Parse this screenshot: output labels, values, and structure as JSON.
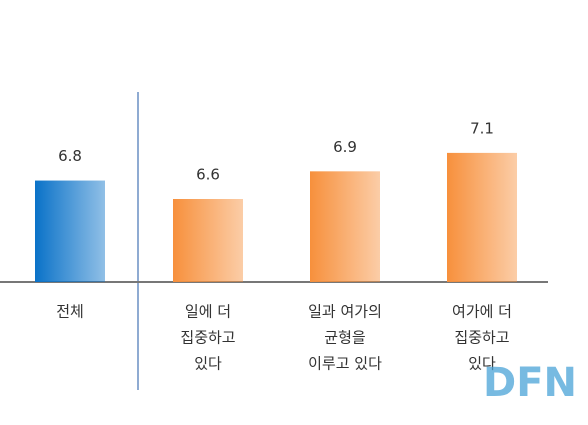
{
  "chart_data": {
    "type": "bar",
    "categories": [
      [
        "전체"
      ],
      [
        "일에 더",
        "집중하고",
        "있다"
      ],
      [
        "일과 여가의",
        "균형을",
        "이루고 있다"
      ],
      [
        "여가에 더",
        "집중하고",
        "있다"
      ]
    ],
    "values": [
      6.8,
      6.6,
      6.9,
      7.1
    ],
    "colors": [
      "#0a72c8",
      "#f7903c",
      "#f7903c",
      "#f7903c"
    ],
    "ylim": [
      5.7,
      7.5
    ],
    "watermark": "DFN"
  }
}
